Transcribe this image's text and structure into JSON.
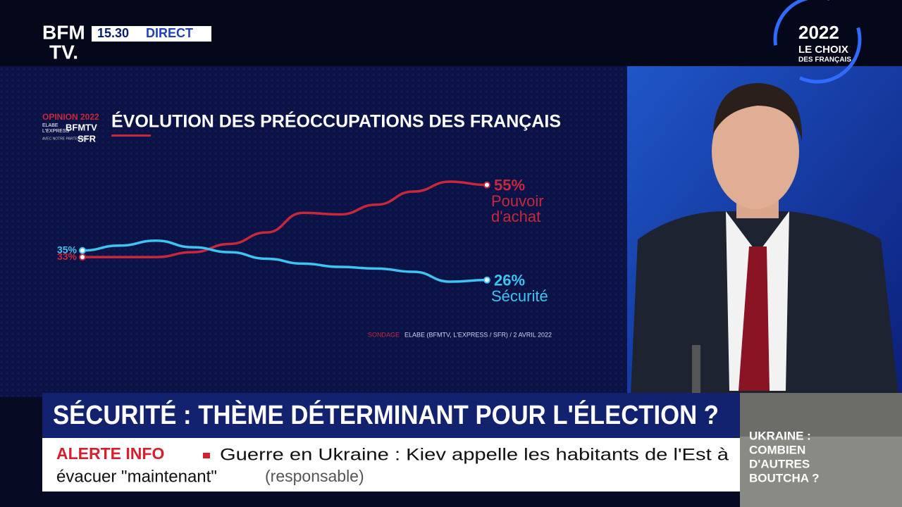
{
  "channel": {
    "logo_top": "BFM",
    "logo_bottom": "TV.",
    "time": "15.30",
    "live": "DIRECT"
  },
  "election_logo": {
    "year": "2022",
    "line1": "LE CHOIX",
    "line2": "DES FRANÇAIS"
  },
  "poll_badge": {
    "line1": "OPINION 2022",
    "line2": "ELABE",
    "line3": "L'EXPRESS",
    "line4": "BFMTV",
    "line5": "AVEC NOTRE PARTENAIRE",
    "line6": "SFR"
  },
  "chart_data": {
    "type": "line",
    "title": "ÉVOLUTION DES PRÉOCCUPATIONS DES FRANÇAIS",
    "source_prefix": "SONDAGE",
    "source": "ELABE (BFMTV, L'EXPRESS / SFR) / 2 AVRIL 2022",
    "series": [
      {
        "name": "Pouvoir d'achat",
        "color": "#c8283c",
        "values": [
          33,
          33,
          33,
          34.5,
          37,
          40.5,
          46.5,
          46,
          49,
          53,
          56,
          55
        ],
        "value_labels": [
          "33%",
          null,
          null,
          null,
          null,
          null,
          null,
          null,
          null,
          null,
          null,
          "55%"
        ]
      },
      {
        "name": "Sécurité",
        "color": "#3ec4f2",
        "values": [
          35,
          36.5,
          38,
          36,
          34.5,
          32.5,
          31,
          30,
          29.5,
          28.5,
          25.5,
          26
        ],
        "value_labels": [
          "35%",
          null,
          null,
          null,
          null,
          null,
          null,
          null,
          null,
          null,
          null,
          "26%"
        ]
      }
    ]
  },
  "headline": "SÉCURITÉ : THÈME DÉTERMINANT POUR L'ÉLECTION ?",
  "ticker": {
    "tag": "ALERTE INFO",
    "line1": "Guerre en Ukraine : Kiev appelle les habitants de l'Est à",
    "line2": "évacuer \"maintenant\"",
    "source": "(responsable)"
  },
  "inset": {
    "line1": "UKRAINE :",
    "line2": "COMBIEN",
    "line3": "D'AUTRES",
    "line4": "BOUTCHA ?"
  }
}
